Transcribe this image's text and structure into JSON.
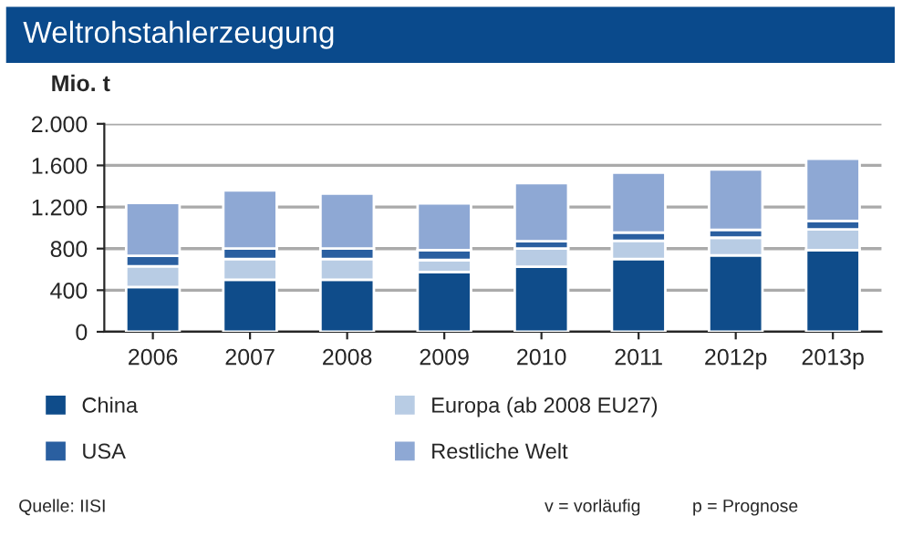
{
  "chart_data": {
    "type": "bar",
    "title": "Weltrohstahlerzeugung",
    "ylabel": "Mio. t",
    "categories": [
      "2006",
      "2007",
      "2008",
      "2009",
      "2010",
      "2011",
      "2012p",
      "2013p"
    ],
    "stacked": true,
    "series": [
      {
        "name": "China",
        "color": "#0f4c8a",
        "values": [
          430,
          500,
          500,
          575,
          625,
          700,
          735,
          785
        ]
      },
      {
        "name": "Europa (ab 2008 EU27)",
        "color": "#b8cce4",
        "values": [
          200,
          200,
          200,
          115,
          175,
          175,
          170,
          200
        ]
      },
      {
        "name": "USA",
        "color": "#2a5fa0",
        "values": [
          100,
          100,
          100,
          95,
          70,
          80,
          76,
          80
        ]
      },
      {
        "name": "Restliche Welt",
        "color": "#8ea8d4",
        "values": [
          510,
          560,
          530,
          450,
          560,
          575,
          580,
          600
        ]
      }
    ],
    "ylim": [
      0,
      2000
    ],
    "yticks": [
      0,
      400,
      800,
      {
        "value": 1200,
        "label": "1.200"
      },
      {
        "value": 1600,
        "label": "1.600"
      },
      {
        "value": 2000,
        "label": "2.000"
      }
    ],
    "grid": "y",
    "legend": "bottom",
    "annotations": [
      "Quelle: IISI",
      "v = vorläufig",
      "p = Prognose"
    ]
  }
}
